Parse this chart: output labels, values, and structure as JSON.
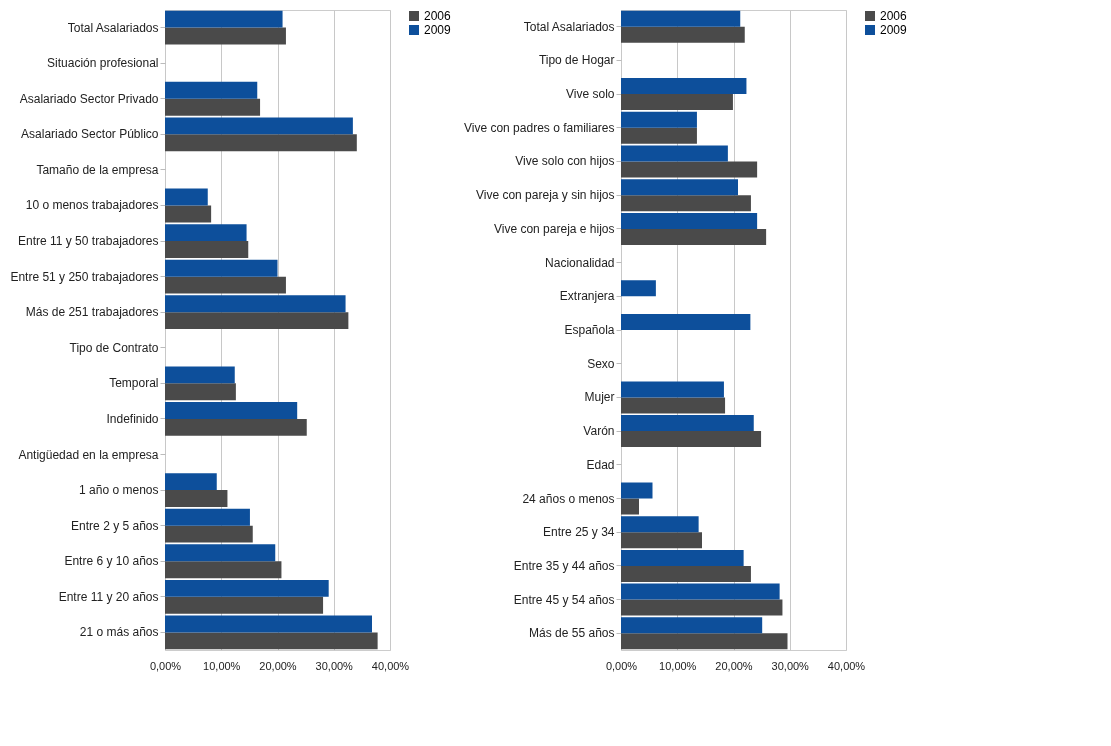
{
  "chart_data": [
    {
      "type": "bar",
      "orientation": "horizontal",
      "categories": [
        "Total Asalariados",
        "Situación profesional",
        "Asalariado Sector Privado",
        "Asalariado Sector Público",
        "Tamaño de la empresa",
        "10 o menos trabajadores",
        "Entre 11 y 50 trabajadores",
        "Entre 51 y 250 trabajadores",
        "Más de 251 trabajadores",
        "Tipo de Contrato",
        "Temporal",
        "Indefinido",
        "Antigüedad en la empresa",
        "1 año o menos",
        "Entre 2 y 5 años",
        "Entre 6 y 10 años",
        "Entre 11 y 20 años",
        "21 o más años"
      ],
      "series": [
        {
          "name": "2006",
          "color": "#4a4a4a",
          "values": [
            21.5,
            null,
            16.9,
            34.1,
            null,
            8.2,
            14.8,
            21.5,
            32.6,
            null,
            12.6,
            25.2,
            null,
            11.1,
            15.6,
            20.7,
            28.1,
            37.8
          ]
        },
        {
          "name": "2009",
          "color": "#0d4f9b",
          "values": [
            20.9,
            null,
            16.4,
            33.4,
            null,
            7.6,
            14.5,
            20.0,
            32.1,
            null,
            12.4,
            23.5,
            null,
            9.2,
            15.1,
            19.6,
            29.1,
            36.8
          ]
        }
      ],
      "xlim": [
        0,
        40
      ],
      "xticks": [
        {
          "value": 0,
          "label": "0,00%"
        },
        {
          "value": 10,
          "label": "10,00%"
        },
        {
          "value": 20,
          "label": "20,00%"
        },
        {
          "value": 30,
          "label": "30,00%"
        },
        {
          "value": 40,
          "label": "40,00%"
        }
      ],
      "grid": "x",
      "legend": "right"
    },
    {
      "type": "bar",
      "orientation": "horizontal",
      "categories": [
        "Total Asalariados",
        "Tipo de Hogar",
        "Vive solo",
        "Vive con padres o familiares",
        "Vive solo con hijos",
        "Vive con pareja y sin hijos",
        "Vive con pareja e hijos",
        "Nacionalidad",
        "Extranjera",
        "Española",
        "Sexo",
        "Mujer",
        "Varón",
        "Edad",
        "24 años o menos",
        "Entre 25 y 34",
        "Entre 35 y 44 años",
        "Entre 45 y 54 años",
        "Más de 55 años"
      ],
      "series": [
        {
          "name": "2006",
          "color": "#4a4a4a",
          "values": [
            22.0,
            null,
            19.9,
            13.5,
            24.2,
            23.1,
            25.8,
            null,
            null,
            null,
            null,
            18.5,
            24.9,
            null,
            3.2,
            14.4,
            23.1,
            28.7,
            29.6
          ]
        },
        {
          "name": "2009",
          "color": "#0d4f9b",
          "values": [
            21.2,
            null,
            22.3,
            13.5,
            19.0,
            20.8,
            24.2,
            null,
            6.2,
            23.0,
            null,
            18.3,
            23.6,
            null,
            5.6,
            13.8,
            21.8,
            28.2,
            25.1
          ]
        }
      ],
      "xlim": [
        0,
        40
      ],
      "xticks": [
        {
          "value": 0,
          "label": "0,00%"
        },
        {
          "value": 10,
          "label": "10,00%"
        },
        {
          "value": 20,
          "label": "20,00%"
        },
        {
          "value": 30,
          "label": "30,00%"
        },
        {
          "value": 40,
          "label": "40,00%"
        }
      ],
      "grid": "x",
      "legend": "right"
    }
  ]
}
